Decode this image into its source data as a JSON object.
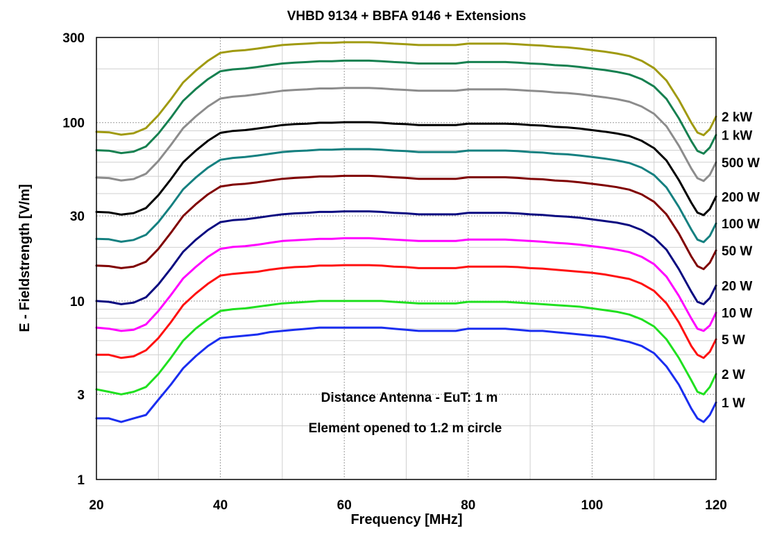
{
  "chart_data": {
    "type": "line",
    "title": "VHBD 9134 + BBFA 9146 + Extensions",
    "xlabel": "Frequency [MHz]",
    "ylabel": "E - Fieldstrength [V/m]",
    "x_scale": "linear",
    "y_scale": "log",
    "xlim": [
      20,
      120
    ],
    "ylim": [
      1,
      300
    ],
    "x_ticks": [
      20,
      40,
      60,
      80,
      100,
      120
    ],
    "x_tick_labels": [
      "20",
      "40",
      "60",
      "80",
      "100",
      "120"
    ],
    "y_ticks": [
      1,
      3,
      10,
      30,
      100,
      300
    ],
    "y_tick_labels": [
      "1",
      "3",
      "10",
      "30",
      "100",
      "300"
    ],
    "grid": true,
    "legend": "right-edge labels",
    "annotations": [
      "Distance Antenna - EuT: 1 m",
      "Element opened to 1.2 m circle"
    ],
    "x": [
      20,
      22,
      24,
      26,
      28,
      30,
      32,
      34,
      36,
      38,
      40,
      42,
      44,
      46,
      48,
      50,
      52,
      54,
      56,
      58,
      60,
      62,
      64,
      66,
      68,
      70,
      72,
      74,
      76,
      78,
      80,
      82,
      84,
      86,
      88,
      90,
      92,
      94,
      96,
      98,
      100,
      102,
      104,
      106,
      108,
      110,
      112,
      114,
      116,
      117,
      118,
      119,
      120
    ],
    "series": [
      {
        "name": "2 kW",
        "color": "#a09a10",
        "values": [
          88.8,
          88.2,
          85.6,
          87.2,
          93.2,
          110,
          135,
          168,
          195,
          222,
          246,
          252,
          255,
          260,
          266,
          272,
          275,
          277,
          280,
          280,
          282,
          282,
          282,
          280,
          277,
          275,
          272,
          272,
          272,
          272,
          277,
          277,
          277,
          277,
          275,
          272,
          270,
          266,
          264,
          260,
          255,
          250,
          244,
          236,
          222,
          202,
          172,
          134,
          100,
          88,
          85,
          92,
          108
        ]
      },
      {
        "name": "1 kW",
        "color": "#168050",
        "values": [
          70,
          69.6,
          67.5,
          68.8,
          73.5,
          86.8,
          106.5,
          132.5,
          153.8,
          175.1,
          194,
          198.7,
          201.1,
          205.1,
          209.8,
          214.5,
          216.9,
          218.5,
          220.9,
          220.9,
          222.4,
          222.4,
          222.4,
          220.9,
          218.5,
          216.9,
          214.5,
          214.5,
          214.5,
          214.5,
          218.5,
          218.5,
          218.5,
          218.5,
          216.9,
          214.5,
          213,
          209.8,
          208.2,
          205.1,
          201.1,
          197.2,
          192.5,
          186.2,
          175.1,
          159.3,
          135.7,
          105.7,
          78.9,
          69.4,
          67,
          72.6,
          85.2
        ]
      },
      {
        "name": "500 W",
        "color": "#8c8c8c",
        "values": [
          49.2,
          48.9,
          47.4,
          48.3,
          51.7,
          61,
          74.9,
          93.2,
          108.1,
          123.1,
          136.4,
          139.7,
          141.4,
          144.2,
          147.5,
          150.8,
          152.5,
          153.6,
          155.3,
          155.3,
          156.4,
          156.4,
          156.4,
          155.3,
          153.6,
          152.5,
          150.8,
          150.8,
          150.8,
          150.8,
          153.6,
          153.6,
          153.6,
          153.6,
          152.5,
          150.8,
          149.7,
          147.5,
          146.4,
          144.2,
          141.4,
          138.6,
          135.3,
          130.9,
          123.1,
          112,
          95.4,
          74.3,
          55.4,
          48.8,
          47.1,
          51,
          59.9
        ]
      },
      {
        "name": "200 W",
        "color": "#000000",
        "values": [
          31.6,
          31.4,
          30.5,
          31.1,
          33.2,
          39.2,
          48.1,
          59.9,
          69.5,
          79.1,
          87.6,
          89.8,
          90.8,
          92.6,
          94.7,
          96.9,
          98,
          98.7,
          99.8,
          99.8,
          100.5,
          100.5,
          100.5,
          99.8,
          98.7,
          98,
          96.9,
          96.9,
          96.9,
          96.9,
          98.7,
          98.7,
          98.7,
          98.7,
          98,
          96.9,
          96.2,
          94.7,
          94,
          92.6,
          90.8,
          89,
          86.9,
          84.1,
          79.1,
          71.9,
          61.3,
          47.7,
          35.6,
          31.3,
          30.3,
          32.8,
          38.5
        ]
      },
      {
        "name": "100 W",
        "color": "#158080",
        "values": [
          22.3,
          22.2,
          21.5,
          22,
          23.5,
          27.7,
          34,
          42.3,
          49.1,
          55.9,
          61.9,
          63.4,
          64.2,
          65.4,
          66.9,
          68.4,
          69.2,
          69.7,
          70.5,
          70.5,
          71,
          71,
          71,
          70.5,
          69.7,
          69.2,
          68.4,
          68.4,
          68.4,
          68.4,
          69.7,
          69.7,
          69.7,
          69.7,
          69.2,
          68.4,
          67.9,
          66.9,
          66.4,
          65.4,
          64.2,
          62.9,
          61.4,
          59.4,
          55.9,
          50.8,
          43.3,
          33.7,
          25.2,
          22.1,
          21.4,
          23.2,
          27.2
        ]
      },
      {
        "name": "50 W",
        "color": "#800000",
        "values": [
          15.8,
          15.7,
          15.3,
          15.6,
          16.6,
          19.6,
          24.1,
          30,
          34.8,
          39.6,
          43.8,
          44.9,
          45.4,
          46.3,
          47.4,
          48.4,
          49,
          49.4,
          49.9,
          49.9,
          50.3,
          50.3,
          50.3,
          49.9,
          49.4,
          49,
          48.4,
          48.4,
          48.4,
          48.4,
          49.4,
          49.4,
          49.4,
          49.4,
          49,
          48.4,
          48.1,
          47.4,
          47,
          46.3,
          45.4,
          44.5,
          43.5,
          42.1,
          39.6,
          36,
          30.6,
          23.9,
          17.8,
          15.7,
          15.1,
          16.4,
          19.2
        ]
      },
      {
        "name": "20 W",
        "color": "#0a0a80",
        "values": [
          10,
          9.9,
          9.6,
          9.8,
          10.5,
          12.4,
          15.2,
          18.9,
          22,
          25,
          27.7,
          28.4,
          28.7,
          29.3,
          30,
          30.6,
          31,
          31.2,
          31.6,
          31.6,
          31.8,
          31.8,
          31.8,
          31.6,
          31.2,
          31,
          30.6,
          30.6,
          30.6,
          30.6,
          31.2,
          31.2,
          31.2,
          31.2,
          31,
          30.6,
          30.4,
          30,
          29.7,
          29.3,
          28.7,
          28.1,
          27.5,
          26.6,
          25,
          22.7,
          19.4,
          15.1,
          11.3,
          9.9,
          9.6,
          10.4,
          12.2
        ]
      },
      {
        "name": "10 W",
        "color": "#ff00ff",
        "values": [
          7.1,
          7,
          6.8,
          6.9,
          7.4,
          8.8,
          10.8,
          13.4,
          15.5,
          17.7,
          19.6,
          20.1,
          20.3,
          20.7,
          21.2,
          21.7,
          21.9,
          22.1,
          22.3,
          22.3,
          22.5,
          22.5,
          22.5,
          22.3,
          22.1,
          21.9,
          21.7,
          21.7,
          21.7,
          21.7,
          22.1,
          22.1,
          22.1,
          22.1,
          21.9,
          21.7,
          21.5,
          21.2,
          21,
          20.7,
          20.3,
          19.9,
          19.4,
          18.8,
          17.7,
          16.1,
          13.7,
          10.7,
          8,
          7,
          6.8,
          7.3,
          8.6
        ]
      },
      {
        "name": "5 W",
        "color": "#ff1010",
        "values": [
          5,
          5,
          4.8,
          4.9,
          5.3,
          6.2,
          7.6,
          9.5,
          11,
          12.5,
          13.9,
          14.2,
          14.4,
          14.6,
          15,
          15.3,
          15.5,
          15.6,
          15.8,
          15.8,
          15.9,
          15.9,
          15.9,
          15.8,
          15.6,
          15.5,
          15.3,
          15.3,
          15.3,
          15.3,
          15.6,
          15.6,
          15.6,
          15.6,
          15.5,
          15.3,
          15.2,
          15,
          14.8,
          14.6,
          14.4,
          14.1,
          13.7,
          13.3,
          12.5,
          11.4,
          9.7,
          7.6,
          5.6,
          5,
          4.8,
          5.2,
          6.1
        ]
      },
      {
        "name": "2 W",
        "color": "#20e020",
        "values": [
          3.2,
          3.1,
          3,
          3.1,
          3.3,
          3.9,
          4.8,
          6,
          7,
          7.9,
          8.8,
          9,
          9.1,
          9.3,
          9.5,
          9.7,
          9.8,
          9.9,
          10,
          10,
          10,
          10,
          10,
          10,
          9.9,
          9.8,
          9.7,
          9.7,
          9.7,
          9.7,
          9.9,
          9.9,
          9.9,
          9.9,
          9.8,
          9.7,
          9.6,
          9.5,
          9.4,
          9.3,
          9.1,
          8.9,
          8.7,
          8.4,
          7.9,
          7.2,
          6.1,
          4.8,
          3.6,
          3.1,
          3,
          3.3,
          3.9
        ]
      },
      {
        "name": "1 W",
        "color": "#1a2ef0",
        "values": [
          2.2,
          2.2,
          2.1,
          2.2,
          2.3,
          2.8,
          3.4,
          4.2,
          4.9,
          5.6,
          6.2,
          6.3,
          6.4,
          6.5,
          6.7,
          6.8,
          6.9,
          7,
          7.1,
          7.1,
          7.1,
          7.1,
          7.1,
          7.1,
          7,
          6.9,
          6.8,
          6.8,
          6.8,
          6.8,
          7,
          7,
          7,
          7,
          6.9,
          6.8,
          6.8,
          6.7,
          6.6,
          6.5,
          6.4,
          6.3,
          6.1,
          5.9,
          5.6,
          5.1,
          4.3,
          3.4,
          2.5,
          2.2,
          2.1,
          2.3,
          2.7
        ]
      }
    ]
  }
}
